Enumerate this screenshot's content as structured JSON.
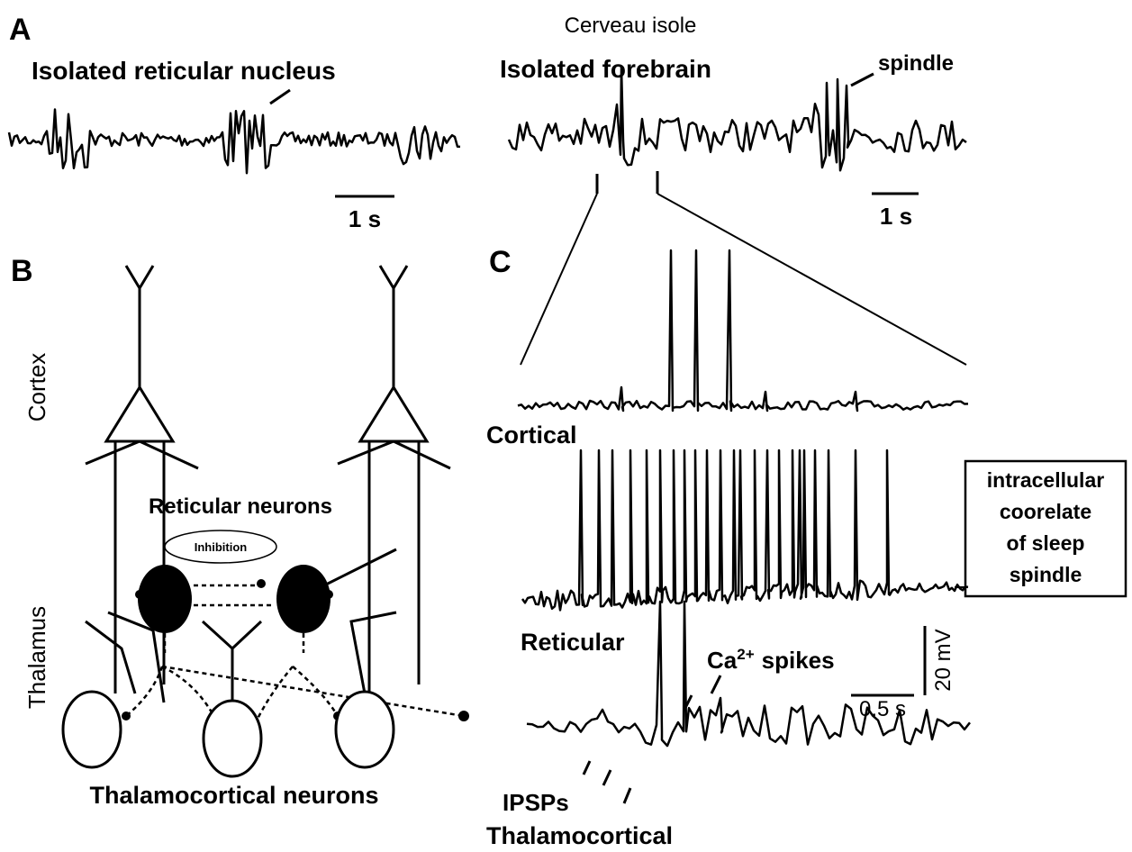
{
  "panel_a": {
    "label": "A",
    "title": "Cerveau isole",
    "left_label": "Isolated reticular nucleus",
    "right_label": "Isolated forebrain",
    "spindle": "spindle",
    "scale_left": "1 s",
    "scale_right": "1 s"
  },
  "panel_b": {
    "label": "B",
    "cortex": "Cortex",
    "thalamus": "Thalamus",
    "reticular": "Reticular neurons",
    "inhibition": "Inhibition",
    "thalamocortical": "Thalamocortical neurons"
  },
  "panel_c": {
    "label": "C",
    "cortical": "Cortical",
    "reticular": "Reticular",
    "ca": "Ca",
    "ca_sup": "2+",
    "spikes": "spikes",
    "scale_voltage": "20 mV",
    "scale_time": "0.5 s",
    "ipsps": "IPSPs",
    "thalamocortical": "Thalamocortical"
  },
  "callout": {
    "lines": [
      "intracellular",
      "coorelate",
      "of sleep",
      "spindle"
    ]
  }
}
